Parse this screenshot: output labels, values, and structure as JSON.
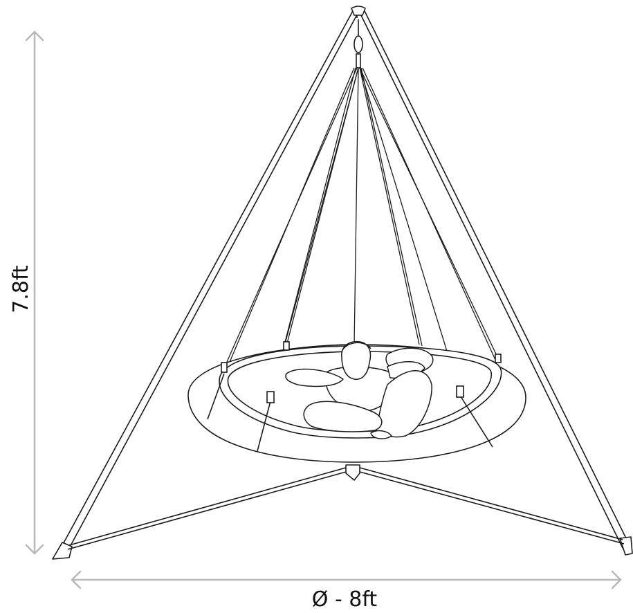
{
  "dimensions": {
    "height_label": "7.8ft",
    "diameter_label": "Ø - 8ft"
  },
  "colors": {
    "line": "#1a1a1a",
    "dimension_arrow": "#b8b8b8",
    "fill": "#ffffff"
  }
}
